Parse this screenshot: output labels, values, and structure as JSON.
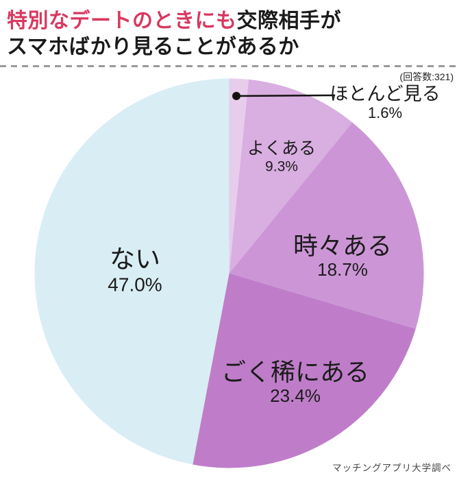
{
  "header": {
    "title_highlight": "特別なデートのときにも",
    "title_rest": "交際相手が",
    "title_line2": "スマホばかり見ることがあるか",
    "respondents_note": "(回答数:321)",
    "highlight_color": "#d8385f"
  },
  "footer": {
    "source": "マッチングアプリ大学調べ"
  },
  "chart_data": {
    "type": "pie",
    "title": "特別なデートのときにも交際相手がスマホばかり見ることがあるか",
    "respondents": 321,
    "start_angle_deg": 0,
    "direction": "clockwise",
    "legend_position": "none",
    "segments": [
      {
        "label": "ほとんど見る",
        "value": 1.6,
        "color": "#e7cdeb",
        "callout": true
      },
      {
        "label": "よくある",
        "value": 9.3,
        "color": "#d9aee1",
        "callout": false
      },
      {
        "label": "時々ある",
        "value": 18.7,
        "color": "#cc96d6",
        "callout": false
      },
      {
        "label": "ごく稀にある",
        "value": 23.4,
        "color": "#bf7dc9",
        "callout": false
      },
      {
        "label": "ない",
        "value": 47.0,
        "color": "#d9edf4",
        "callout": false
      }
    ]
  }
}
